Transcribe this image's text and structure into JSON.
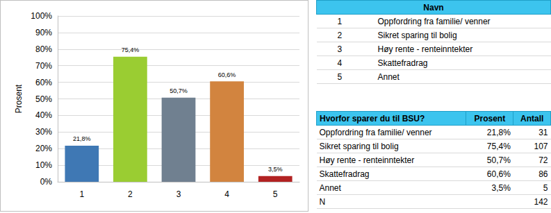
{
  "chart_data": {
    "type": "bar",
    "y_label": "Prosent",
    "categories": [
      "1",
      "2",
      "3",
      "4",
      "5"
    ],
    "values": [
      21.8,
      75.4,
      50.7,
      60.6,
      3.5
    ],
    "value_labels": [
      "21,8%",
      "75,4%",
      "50,7%",
      "60,6%",
      "3,5%"
    ],
    "colors": [
      "#3f78b4",
      "#9acd32",
      "#708090",
      "#d2843f",
      "#b22222"
    ],
    "data_labels": true,
    "ylim": [
      0,
      100
    ],
    "yticks": [
      {
        "value": 0,
        "label": "0%"
      },
      {
        "value": 10,
        "label": "10%"
      },
      {
        "value": 20,
        "label": "20%"
      },
      {
        "value": 30,
        "label": "30%"
      },
      {
        "value": 40,
        "label": "40%"
      },
      {
        "value": 50,
        "label": "50%"
      },
      {
        "value": 60,
        "label": "60%"
      },
      {
        "value": 70,
        "label": "70%"
      },
      {
        "value": 80,
        "label": "80%"
      },
      {
        "value": 90,
        "label": "90%"
      },
      {
        "value": 100,
        "label": "100%"
      }
    ],
    "grid": true
  },
  "tables": [
    {
      "header": [
        "Navn"
      ],
      "rows": [
        [
          "1",
          "Oppfordring fra familie/ venner"
        ],
        [
          "2",
          "Sikret sparing til bolig"
        ],
        [
          "3",
          "Høy rente - renteinntekter"
        ],
        [
          "4",
          "Skattefradrag"
        ],
        [
          "5",
          "Annet"
        ]
      ]
    },
    {
      "header": [
        "Hvorfor sparer du til BSU?",
        "Prosent",
        "Antall"
      ],
      "rows": [
        [
          "Oppfordring fra familie/ venner",
          "21,8%",
          31
        ],
        [
          "Sikret sparing til bolig",
          "75,4%",
          107
        ],
        [
          "Høy rente - renteinntekter",
          "50,7%",
          72
        ],
        [
          "Skattefradrag",
          "60,6%",
          86
        ],
        [
          "Annet",
          "3,5%",
          5
        ]
      ],
      "total": {
        "label": "N",
        "count": 142
      }
    }
  ]
}
